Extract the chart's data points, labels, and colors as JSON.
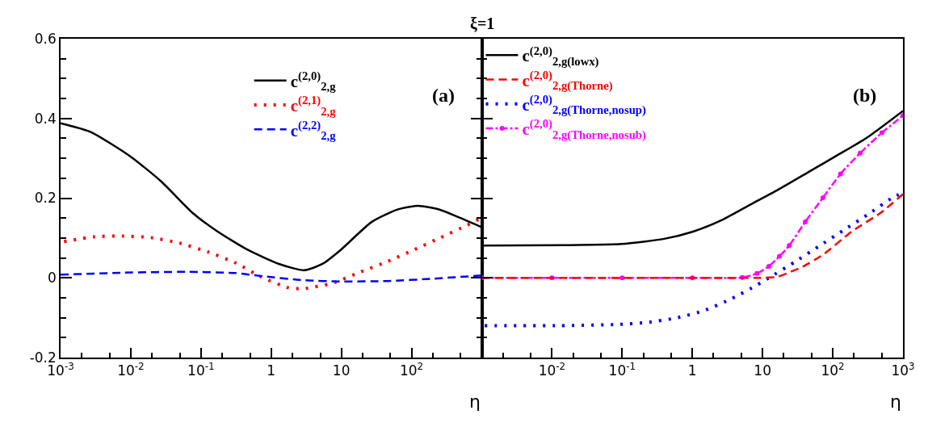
{
  "chart_data": [
    {
      "type": "line",
      "title": "ξ=1",
      "xlabel": "η",
      "log": "x",
      "xlim": [
        0.001,
        1000
      ],
      "ylim": [
        -0.2,
        0.6
      ],
      "xticks": [
        {
          "value": 0.001,
          "label": "10$^{-3}$"
        },
        {
          "value": 0.01,
          "label": "10$^{-2}$"
        },
        {
          "value": 0.1,
          "label": "10$^{-1}$"
        },
        1,
        10,
        {
          "value": 100,
          "label": "10$^{2}$"
        },
        {
          "value": 1000,
          "label": null
        }
      ],
      "yticks": [
        -0.2,
        0,
        0.2,
        0.4,
        0.6
      ],
      "legend": "top",
      "annotations": [
        "(a)"
      ],
      "series": [
        {
          "name": "c$^{(2,0)}$$_{2,g}$",
          "color": "#000000",
          "line_style": "solid",
          "x": [
            0.001,
            0.00269,
            0.01,
            0.0275,
            0.0759,
            0.17,
            0.468,
            1.29,
            2.95,
            5.37,
            9.77,
            26.9,
            61.7,
            123,
            251,
            468,
            1000
          ],
          "values": [
            0.388,
            0.366,
            0.304,
            0.241,
            0.163,
            0.117,
            0.07,
            0.035,
            0.019,
            0.035,
            0.07,
            0.14,
            0.171,
            0.181,
            0.171,
            0.152,
            0.127
          ]
        },
        {
          "name": "c$^{(2,1)}$$_{2,g}$",
          "color": "#ff0000",
          "line_style": "dotted",
          "x": [
            0.00112,
            0.00295,
            0.00759,
            0.0195,
            0.0501,
            0.126,
            0.316,
            0.724,
            1.78,
            2.88,
            7.24,
            18.2,
            45.7,
            107,
            251,
            617,
            955
          ],
          "values": [
            0.091,
            0.103,
            0.105,
            0.101,
            0.087,
            0.065,
            0.037,
            0.002,
            -0.025,
            -0.027,
            -0.014,
            0.014,
            0.041,
            0.07,
            0.1,
            0.132,
            0.149
          ]
        },
        {
          "name": "c$^{(2,2)}$$_{2,g}$",
          "color": "#0000ff",
          "line_style": "dashed",
          "x": [
            0.001,
            0.00813,
            0.0617,
            0.316,
            0.776,
            2.95,
            9.77,
            45.7,
            204,
            1000
          ],
          "values": [
            0.008,
            0.013,
            0.015,
            0.012,
            0.004,
            -0.006,
            -0.009,
            -0.008,
            -0.002,
            0.006
          ]
        }
      ]
    },
    {
      "type": "line",
      "xlabel": "η",
      "log": "x",
      "xlim": [
        0.001,
        1000
      ],
      "ylim": [
        -0.2,
        0.6
      ],
      "xticks": [
        {
          "value": 0.001,
          "label": null
        },
        {
          "value": 0.01,
          "label": "10$^{-2}$"
        },
        {
          "value": 0.1,
          "label": "10$^{-1}$"
        },
        1,
        10,
        {
          "value": 100,
          "label": "10$^{2}$"
        },
        {
          "value": 1000,
          "label": "10$^{3}$"
        }
      ],
      "yticks": [
        -0.2,
        0,
        0.2,
        0.4,
        0.6
      ],
      "tick_labels": "x",
      "legend": "top left",
      "annotations": [
        "(b)"
      ],
      "series": [
        {
          "name": "c$^{(2,0)}$$_{2,g(lowx)}$",
          "color": "#000000",
          "line_style": "solid",
          "x": [
            0.001,
            0.0148,
            0.0977,
            0.398,
            1.02,
            2.63,
            6.92,
            17.8,
            45.7,
            117,
            302,
            1000
          ],
          "values": [
            0.081,
            0.082,
            0.085,
            0.098,
            0.116,
            0.145,
            0.185,
            0.224,
            0.266,
            0.308,
            0.351,
            0.419
          ]
        },
        {
          "name": "c$^{(2,0)}$$_{2,g(Thorne)}$",
          "color": "#ff0000",
          "line_style": "dashed",
          "x": [
            0.001,
            0.01,
            0.1,
            1,
            9.12,
            15.8,
            23.4,
            37.2,
            72.4,
            186,
            479,
            1000
          ],
          "values": [
            0,
            0,
            0,
            0,
            0,
            0.002,
            0.013,
            0.028,
            0.058,
            0.116,
            0.163,
            0.21
          ]
        },
        {
          "name": "c$^{(2,0)}$$_{2,g(Thorne,nosup)}$",
          "color": "#0000ff",
          "line_style": "dotted",
          "x": [
            0.0011,
            0.0126,
            0.0851,
            0.224,
            0.575,
            1.48,
            3.55,
            8.32,
            12.3,
            28.2,
            63.1,
            141,
            316,
            692,
            1000
          ],
          "values": [
            -0.12,
            -0.12,
            -0.117,
            -0.112,
            -0.101,
            -0.082,
            -0.053,
            -0.018,
            0,
            0.039,
            0.079,
            0.119,
            0.159,
            0.2,
            0.214
          ]
        },
        {
          "name": "c$^{(2,0)}$$_{2,g(Thorne,nosub)}$",
          "color": "#ff00ff",
          "line_style": "dashdot",
          "marker": "circle",
          "x": [
            0.001,
            0.01,
            0.1,
            1,
            5.13,
            8.32,
            12.3,
            17.4,
            24.0,
            40.7,
            72.4,
            129,
            245,
            501,
            1000
          ],
          "values": [
            0,
            0,
            0,
            0,
            0.001,
            0.011,
            0.029,
            0.054,
            0.081,
            0.141,
            0.201,
            0.261,
            0.313,
            0.364,
            0.407
          ]
        }
      ]
    }
  ]
}
